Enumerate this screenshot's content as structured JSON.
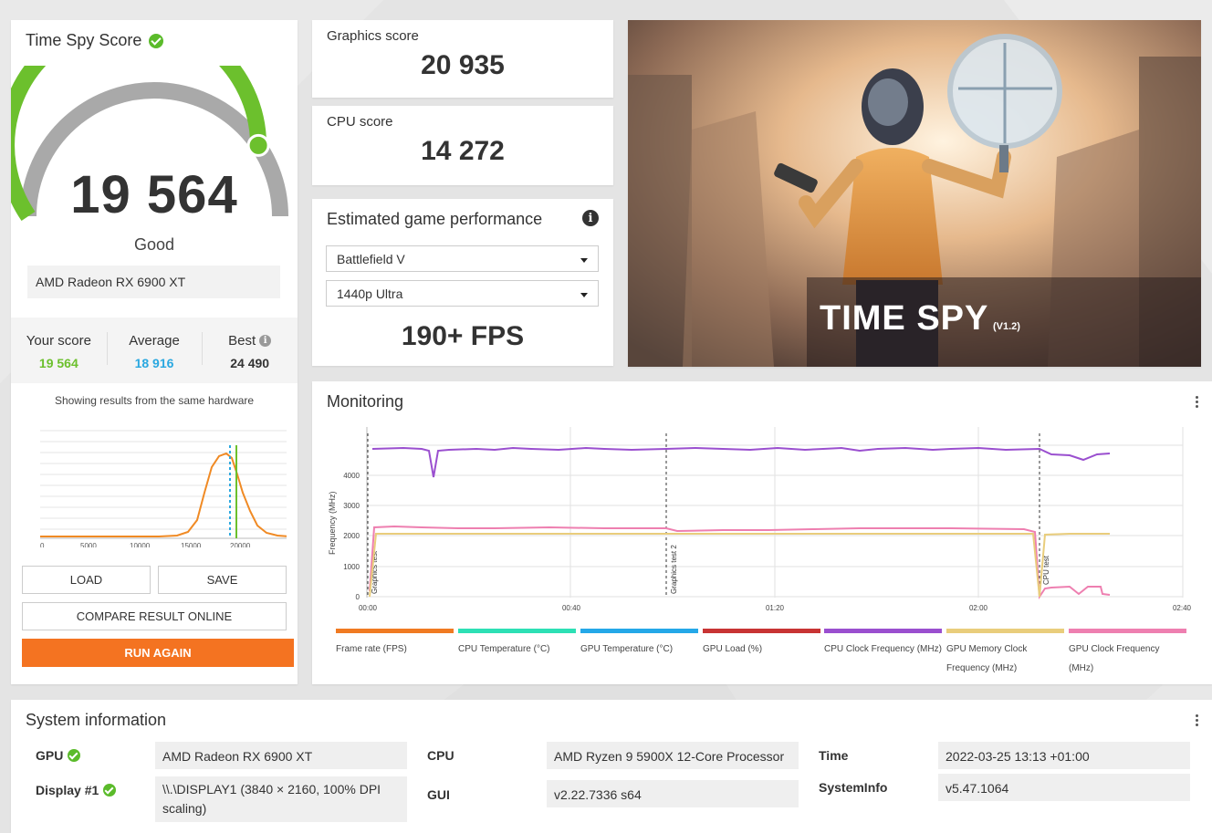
{
  "score_card": {
    "title": "Time Spy Score",
    "score": "19 564",
    "score_fraction": 0.81,
    "rating": "Good",
    "hardware": "AMD Radeon RX 6900 XT",
    "your_score_label": "Your score",
    "your_score": "19 564",
    "average_label": "Average",
    "average": "18 916",
    "best_label": "Best",
    "best": "24 490",
    "showing_text": "Showing results from the same hardware",
    "dist_ticks": [
      "0",
      "5000",
      "10000",
      "15000",
      "20000"
    ],
    "load_label": "LOAD",
    "save_label": "SAVE",
    "compare_label": "COMPARE RESULT ONLINE",
    "run_again_label": "RUN AGAIN",
    "colors": {
      "good": "#6cc02d",
      "average": "#2aa8e0",
      "run": "#f47321",
      "dist_line": "#f08a24"
    }
  },
  "graphics": {
    "label": "Graphics score",
    "value": "20 935"
  },
  "cpu": {
    "label": "CPU score",
    "value": "14 272"
  },
  "estimated": {
    "title": "Estimated game performance",
    "game": "Battlefield V",
    "preset": "1440p Ultra",
    "fps": "190+ FPS"
  },
  "hero": {
    "title": "TIME SPY",
    "version": "(V1.2)"
  },
  "monitoring": {
    "title": "Monitoring",
    "y_label": "Frequency (MHz)",
    "y_ticks": [
      "0",
      "1000",
      "2000",
      "3000",
      "4000"
    ],
    "x_ticks": [
      "00:00",
      "00:40",
      "01:20",
      "02:00",
      "02:40"
    ],
    "markers": [
      "Graphics test",
      "Graphics test 2",
      "CPU test"
    ],
    "legend": [
      {
        "label": "Frame rate (FPS)",
        "color": "#f07a22"
      },
      {
        "label": "CPU Temperature (°C)",
        "color": "#2de0b5"
      },
      {
        "label": "GPU Temperature (°C)",
        "color": "#25a8e8"
      },
      {
        "label": "GPU Load (%)",
        "color": "#c83434"
      },
      {
        "label": "CPU Clock Frequency (MHz)",
        "color": "#9a4fcf"
      },
      {
        "label": "GPU Memory Clock Frequency (MHz)",
        "color": "#e9cd7c"
      },
      {
        "label": "GPU Clock Frequency (MHz)",
        "color": "#ee7fb0"
      }
    ]
  },
  "system": {
    "title": "System information",
    "gpu_key": "GPU",
    "gpu": "AMD Radeon RX 6900 XT",
    "display_key": "Display #1",
    "display": "\\\\.\\DISPLAY1 (3840 × 2160, 100% DPI scaling)",
    "cpu_key": "CPU",
    "cpu": "AMD Ryzen 9 5900X 12-Core Processor",
    "gui_key": "GUI",
    "gui": "v2.22.7336 s64",
    "time_key": "Time",
    "time": "2022-03-25 13:13 +01:00",
    "sysinfo_key": "SystemInfo",
    "sysinfo": "v5.47.1064"
  }
}
